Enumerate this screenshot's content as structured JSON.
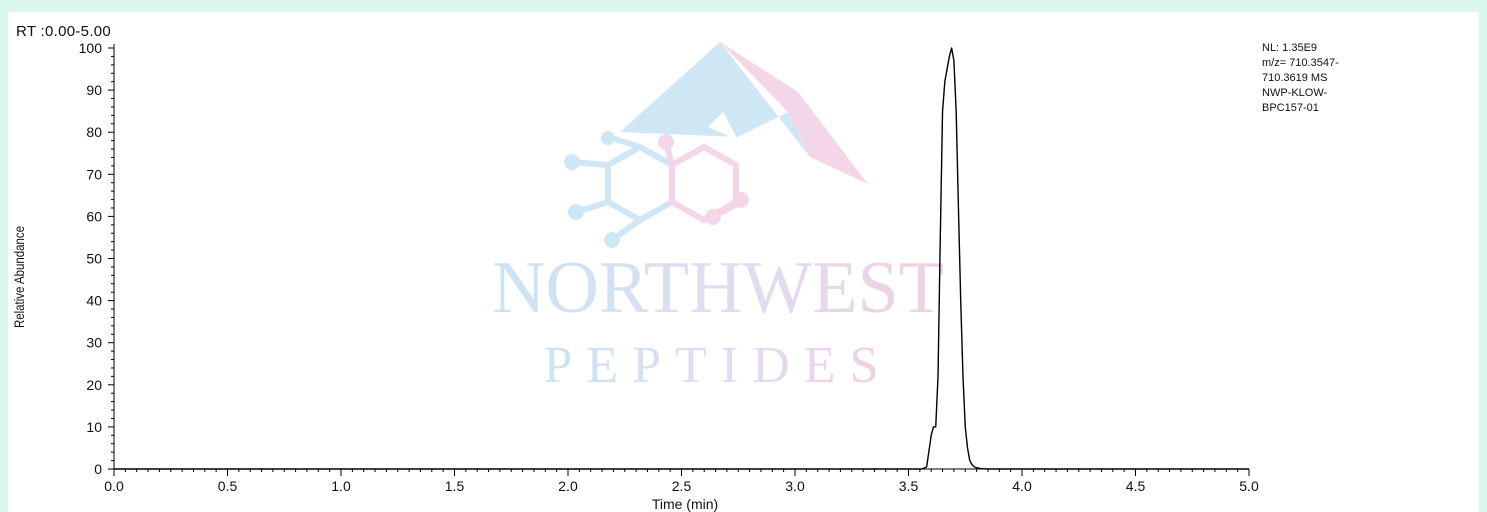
{
  "header": {
    "rt_range": "RT :0.00-5.00"
  },
  "watermark": {
    "line1": "NORTHWEST",
    "line2": "PEPTIDES",
    "colors": {
      "blue": "#9fd0ea",
      "pink": "#e6a9cd"
    }
  },
  "info_box": {
    "lines": [
      "NL: 1.35E9",
      "m/z= 710.3547-",
      "710.3619 MS",
      "NWP-KLOW-",
      "BPC157-01"
    ]
  },
  "chart_data": {
    "type": "line",
    "title": "",
    "xlabel": "Time (min)",
    "ylabel": "Relative Abundance",
    "xlim": [
      0.0,
      5.0
    ],
    "ylim": [
      0,
      100
    ],
    "x_ticks": [
      "0.0",
      "0.5",
      "1.0",
      "1.5",
      "2.0",
      "2.5",
      "3.0",
      "3.5",
      "4.0",
      "4.5",
      "5.0"
    ],
    "y_ticks": [
      "0",
      "10",
      "20",
      "30",
      "40",
      "50",
      "60",
      "70",
      "80",
      "90",
      "100"
    ],
    "grid": false,
    "series": [
      {
        "color": "#000000",
        "x": [
          0.0,
          3.56,
          3.58,
          3.6,
          3.61,
          3.62,
          3.63,
          3.64,
          3.65,
          3.66,
          3.67,
          3.68,
          3.69,
          3.7,
          3.71,
          3.72,
          3.73,
          3.74,
          3.75,
          3.76,
          3.77,
          3.78,
          3.79,
          3.8,
          3.82,
          3.85,
          3.9,
          5.0
        ],
        "y": [
          0,
          0,
          0.5,
          8,
          10,
          10,
          22,
          55,
          85,
          92,
          95,
          98,
          100,
          97,
          85,
          62,
          40,
          22,
          10,
          5,
          2,
          1,
          0.5,
          0.3,
          0.1,
          0,
          0,
          0
        ]
      }
    ]
  }
}
